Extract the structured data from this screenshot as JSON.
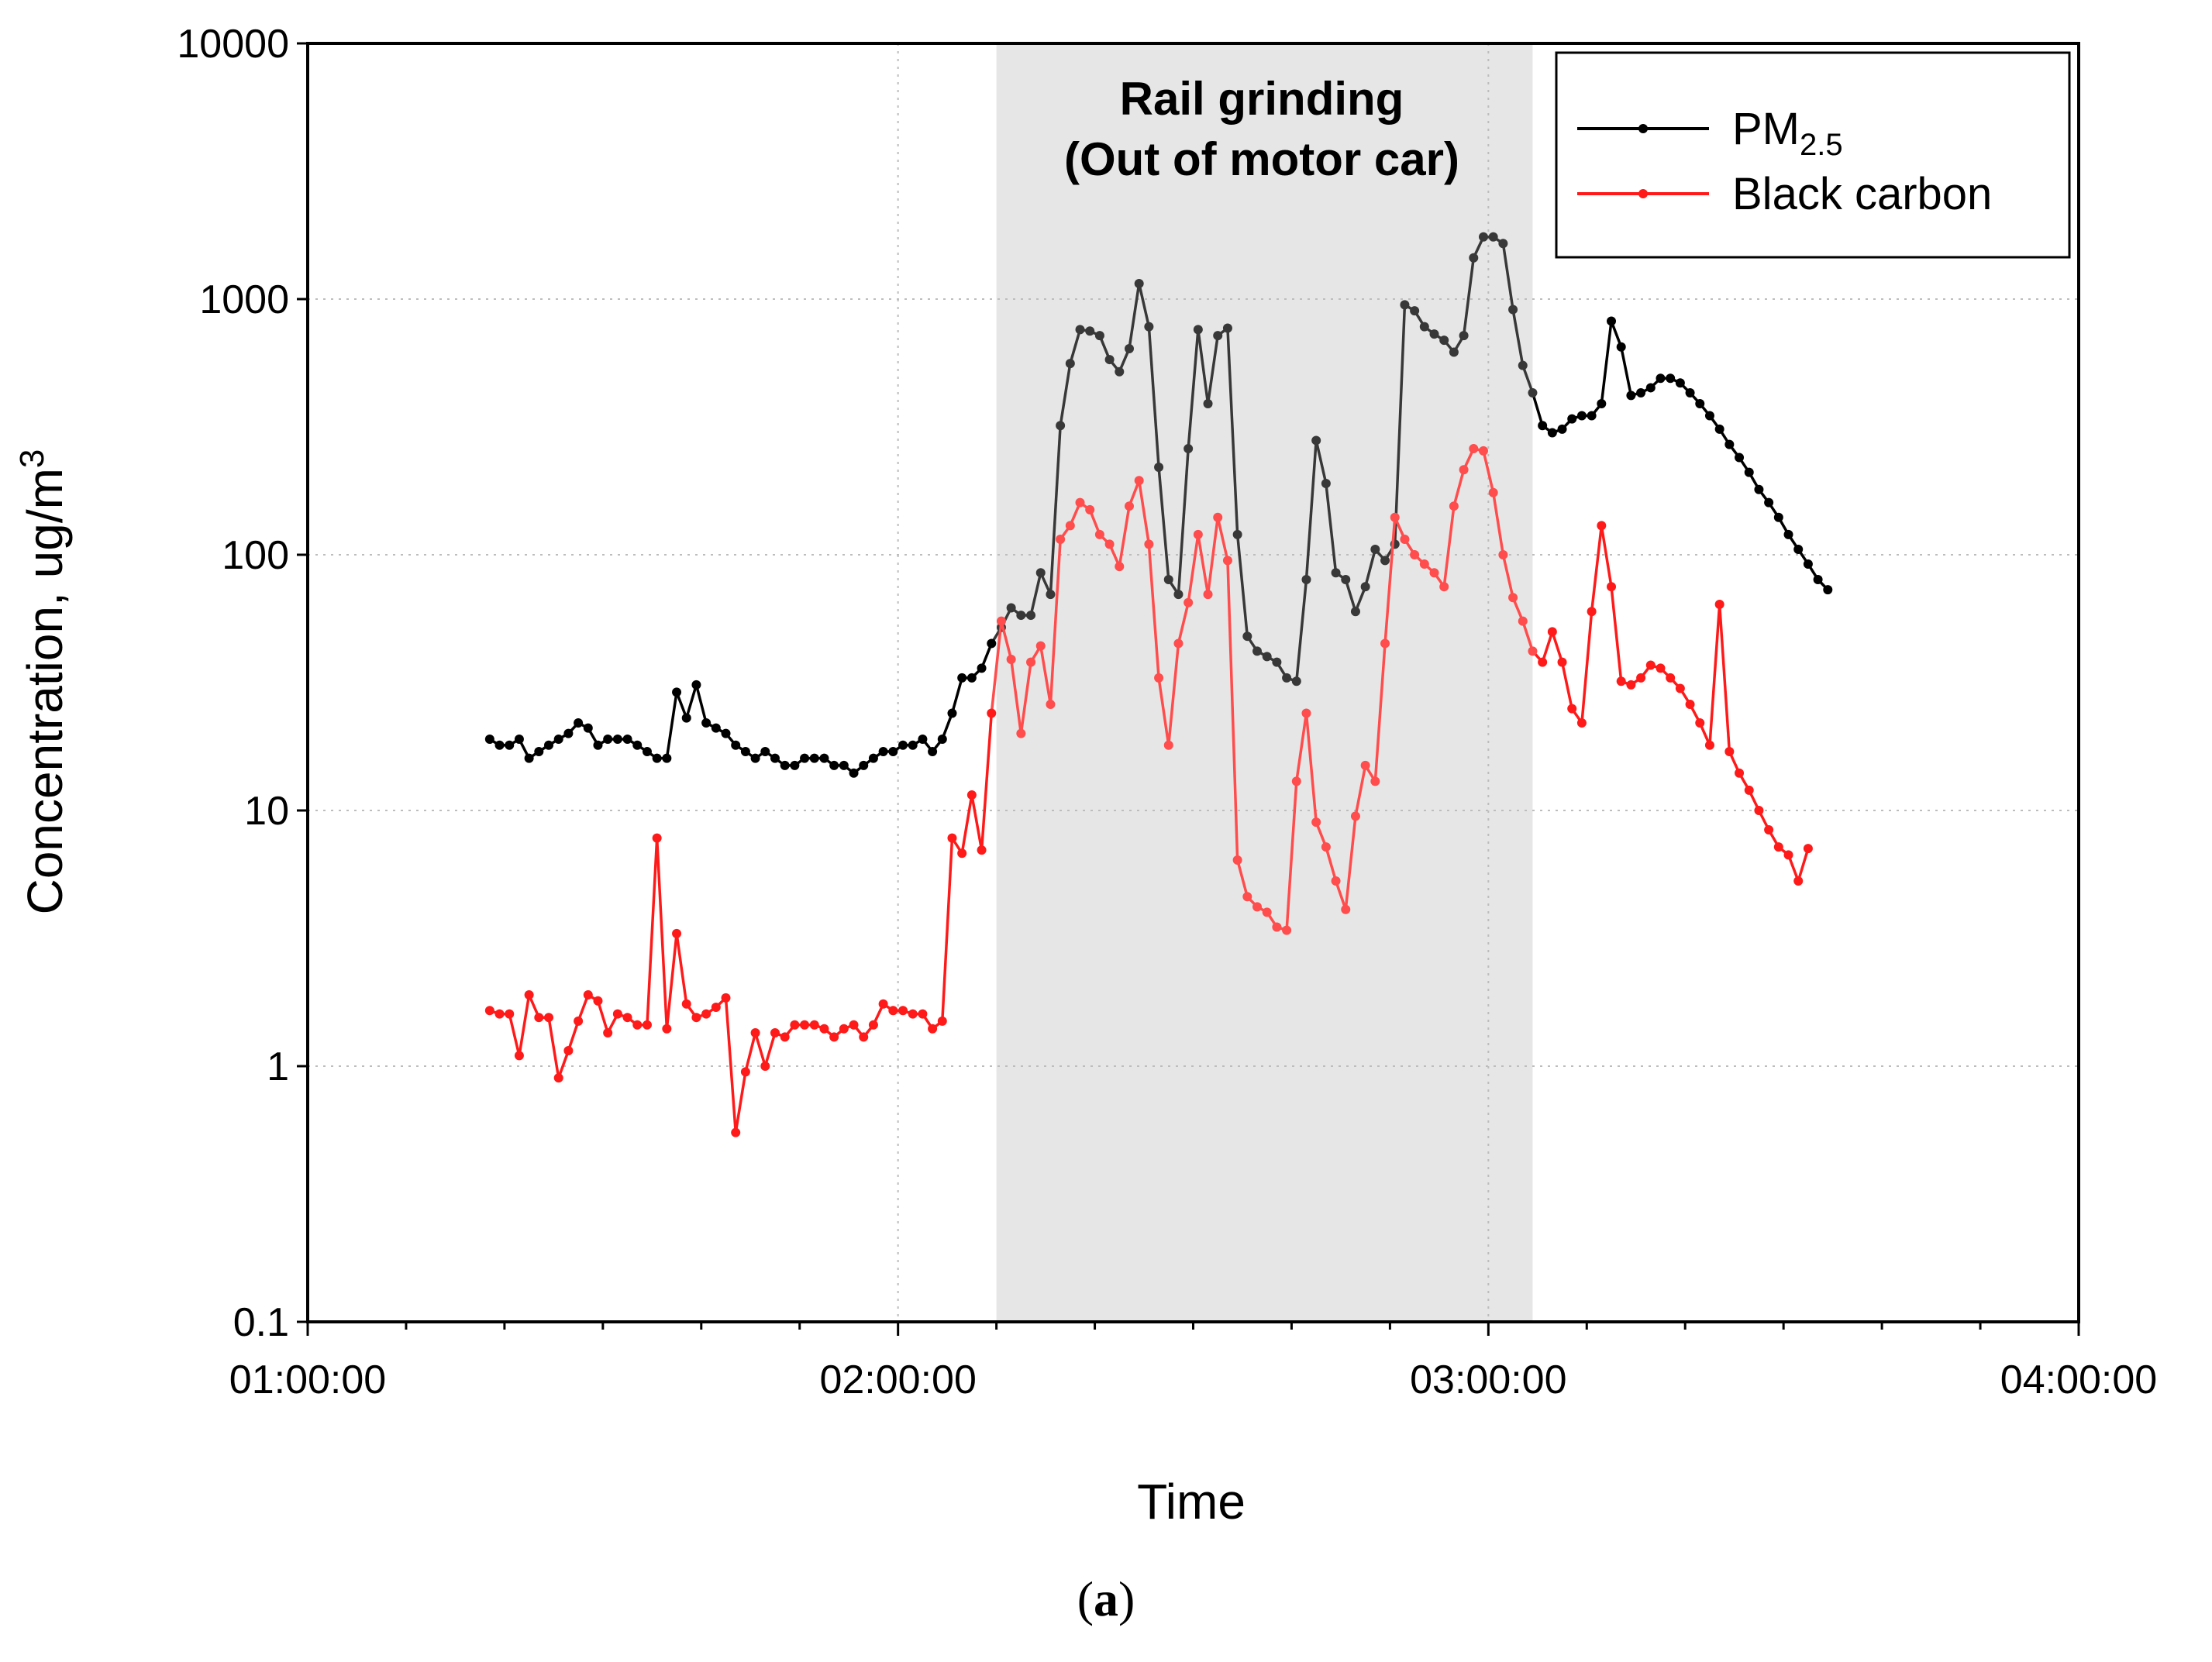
{
  "chart_data": {
    "type": "line",
    "xlabel": "Time",
    "ylabel": "Concentration, ug/m",
    "ylabel_sup": "3",
    "y_scale": "log",
    "ylim": [
      0.1,
      10000
    ],
    "xlim": [
      "01:00:00",
      "04:00:00"
    ],
    "x_ticks": [
      "01:00:00",
      "02:00:00",
      "03:00:00",
      "04:00:00"
    ],
    "y_ticks": [
      "0.1",
      "1",
      "10",
      "100",
      "1000",
      "10000"
    ],
    "y_tick_values": [
      0.1,
      1,
      10,
      100,
      1000,
      10000
    ],
    "grid": "dotted",
    "legend_position": "top-right",
    "caption_paren_open": "(",
    "caption_letter": "a",
    "caption_paren_close": ")",
    "annotation": {
      "line1": "Rail grinding",
      "line2": "(Out of motor car)",
      "start": "02:10:00",
      "end": "03:04:30",
      "color": "#e6e6e6"
    },
    "series": [
      {
        "name": "PM",
        "name_sub": "2.5",
        "color": "#000000",
        "points": [
          [
            "01:18:30",
            19
          ],
          [
            "01:19:30",
            18
          ],
          [
            "01:20:30",
            18
          ],
          [
            "01:21:30",
            19
          ],
          [
            "01:22:30",
            16
          ],
          [
            "01:23:30",
            17
          ],
          [
            "01:24:30",
            18
          ],
          [
            "01:25:30",
            19
          ],
          [
            "01:26:30",
            20
          ],
          [
            "01:27:30",
            22
          ],
          [
            "01:28:30",
            21
          ],
          [
            "01:29:30",
            18
          ],
          [
            "01:30:30",
            19
          ],
          [
            "01:31:30",
            19
          ],
          [
            "01:32:30",
            19
          ],
          [
            "01:33:30",
            18
          ],
          [
            "01:34:30",
            17
          ],
          [
            "01:35:30",
            16
          ],
          [
            "01:36:30",
            16
          ],
          [
            "01:37:30",
            29
          ],
          [
            "01:38:30",
            23
          ],
          [
            "01:39:30",
            31
          ],
          [
            "01:40:30",
            22
          ],
          [
            "01:41:30",
            21
          ],
          [
            "01:42:30",
            20
          ],
          [
            "01:43:30",
            18
          ],
          [
            "01:44:30",
            17
          ],
          [
            "01:45:30",
            16
          ],
          [
            "01:46:30",
            17
          ],
          [
            "01:47:30",
            16
          ],
          [
            "01:48:30",
            15
          ],
          [
            "01:49:30",
            15
          ],
          [
            "01:50:30",
            16
          ],
          [
            "01:51:30",
            16
          ],
          [
            "01:52:30",
            16
          ],
          [
            "01:53:30",
            15
          ],
          [
            "01:54:30",
            15
          ],
          [
            "01:55:30",
            14
          ],
          [
            "01:56:30",
            15
          ],
          [
            "01:57:30",
            16
          ],
          [
            "01:58:30",
            17
          ],
          [
            "01:59:30",
            17
          ],
          [
            "02:00:30",
            18
          ],
          [
            "02:01:30",
            18
          ],
          [
            "02:02:30",
            19
          ],
          [
            "02:03:30",
            17
          ],
          [
            "02:04:30",
            19
          ],
          [
            "02:05:30",
            24
          ],
          [
            "02:06:30",
            33
          ],
          [
            "02:07:30",
            33
          ],
          [
            "02:08:30",
            36
          ],
          [
            "02:09:30",
            45
          ],
          [
            "02:10:30",
            52
          ],
          [
            "02:11:30",
            62
          ],
          [
            "02:12:30",
            58
          ],
          [
            "02:13:30",
            58
          ],
          [
            "02:14:30",
            85
          ],
          [
            "02:15:30",
            70
          ],
          [
            "02:16:30",
            320
          ],
          [
            "02:17:30",
            560
          ],
          [
            "02:18:30",
            760
          ],
          [
            "02:19:30",
            750
          ],
          [
            "02:20:30",
            720
          ],
          [
            "02:21:30",
            580
          ],
          [
            "02:22:30",
            520
          ],
          [
            "02:23:30",
            640
          ],
          [
            "02:24:30",
            1150
          ],
          [
            "02:25:30",
            780
          ],
          [
            "02:26:30",
            220
          ],
          [
            "02:27:30",
            80
          ],
          [
            "02:28:30",
            70
          ],
          [
            "02:29:30",
            260
          ],
          [
            "02:30:30",
            760
          ],
          [
            "02:31:30",
            390
          ],
          [
            "02:32:30",
            720
          ],
          [
            "02:33:30",
            770
          ],
          [
            "02:34:30",
            120
          ],
          [
            "02:35:30",
            48
          ],
          [
            "02:36:30",
            42
          ],
          [
            "02:37:30",
            40
          ],
          [
            "02:38:30",
            38
          ],
          [
            "02:39:30",
            33
          ],
          [
            "02:40:30",
            32
          ],
          [
            "02:41:30",
            80
          ],
          [
            "02:42:30",
            280
          ],
          [
            "02:43:30",
            190
          ],
          [
            "02:44:30",
            85
          ],
          [
            "02:45:30",
            80
          ],
          [
            "02:46:30",
            60
          ],
          [
            "02:47:30",
            75
          ],
          [
            "02:48:30",
            105
          ],
          [
            "02:49:30",
            95
          ],
          [
            "02:50:30",
            110
          ],
          [
            "02:51:30",
            950
          ],
          [
            "02:52:30",
            900
          ],
          [
            "02:53:30",
            780
          ],
          [
            "02:54:30",
            730
          ],
          [
            "02:55:30",
            690
          ],
          [
            "02:56:30",
            620
          ],
          [
            "02:57:30",
            720
          ],
          [
            "02:58:30",
            1450
          ],
          [
            "02:59:30",
            1750
          ],
          [
            "03:00:30",
            1750
          ],
          [
            "03:01:30",
            1650
          ],
          [
            "03:02:30",
            910
          ],
          [
            "03:03:30",
            550
          ],
          [
            "03:04:30",
            430
          ],
          [
            "03:05:30",
            320
          ],
          [
            "03:06:30",
            300
          ],
          [
            "03:07:30",
            310
          ],
          [
            "03:08:30",
            340
          ],
          [
            "03:09:30",
            350
          ],
          [
            "03:10:30",
            350
          ],
          [
            "03:11:30",
            390
          ],
          [
            "03:12:30",
            820
          ],
          [
            "03:13:30",
            650
          ],
          [
            "03:14:30",
            420
          ],
          [
            "03:15:30",
            430
          ],
          [
            "03:16:30",
            450
          ],
          [
            "03:17:30",
            490
          ],
          [
            "03:18:30",
            490
          ],
          [
            "03:19:30",
            470
          ],
          [
            "03:20:30",
            430
          ],
          [
            "03:21:30",
            390
          ],
          [
            "03:22:30",
            350
          ],
          [
            "03:23:30",
            310
          ],
          [
            "03:24:30",
            270
          ],
          [
            "03:25:30",
            240
          ],
          [
            "03:26:30",
            210
          ],
          [
            "03:27:30",
            180
          ],
          [
            "03:28:30",
            160
          ],
          [
            "03:29:30",
            140
          ],
          [
            "03:30:30",
            120
          ],
          [
            "03:31:30",
            105
          ],
          [
            "03:32:30",
            92
          ],
          [
            "03:33:30",
            80
          ],
          [
            "03:34:30",
            73
          ]
        ]
      },
      {
        "name": "Black carbon",
        "name_sub": "",
        "color": "#ff1a1a",
        "points": [
          [
            "01:18:30",
            1.65
          ],
          [
            "01:19:30",
            1.6
          ],
          [
            "01:20:30",
            1.6
          ],
          [
            "01:21:30",
            1.1
          ],
          [
            "01:22:30",
            1.9
          ],
          [
            "01:23:30",
            1.55
          ],
          [
            "01:24:30",
            1.55
          ],
          [
            "01:25:30",
            0.9
          ],
          [
            "01:26:30",
            1.15
          ],
          [
            "01:27:30",
            1.5
          ],
          [
            "01:28:30",
            1.9
          ],
          [
            "01:29:30",
            1.8
          ],
          [
            "01:30:30",
            1.35
          ],
          [
            "01:31:30",
            1.6
          ],
          [
            "01:32:30",
            1.55
          ],
          [
            "01:33:30",
            1.45
          ],
          [
            "01:34:30",
            1.45
          ],
          [
            "01:35:30",
            7.8
          ],
          [
            "01:36:30",
            1.4
          ],
          [
            "01:37:30",
            3.3
          ],
          [
            "01:38:30",
            1.75
          ],
          [
            "01:39:30",
            1.55
          ],
          [
            "01:40:30",
            1.6
          ],
          [
            "01:41:30",
            1.7
          ],
          [
            "01:42:30",
            1.85
          ],
          [
            "01:43:30",
            0.55
          ],
          [
            "01:44:30",
            0.95
          ],
          [
            "01:45:30",
            1.35
          ],
          [
            "01:46:30",
            1.0
          ],
          [
            "01:47:30",
            1.35
          ],
          [
            "01:48:30",
            1.3
          ],
          [
            "01:49:30",
            1.45
          ],
          [
            "01:50:30",
            1.45
          ],
          [
            "01:51:30",
            1.45
          ],
          [
            "01:52:30",
            1.4
          ],
          [
            "01:53:30",
            1.3
          ],
          [
            "01:54:30",
            1.4
          ],
          [
            "01:55:30",
            1.45
          ],
          [
            "01:56:30",
            1.3
          ],
          [
            "01:57:30",
            1.45
          ],
          [
            "01:58:30",
            1.75
          ],
          [
            "01:59:30",
            1.65
          ],
          [
            "02:00:30",
            1.65
          ],
          [
            "02:01:30",
            1.6
          ],
          [
            "02:02:30",
            1.6
          ],
          [
            "02:03:30",
            1.4
          ],
          [
            "02:04:30",
            1.5
          ],
          [
            "02:05:30",
            7.8
          ],
          [
            "02:06:30",
            6.8
          ],
          [
            "02:07:30",
            11.5
          ],
          [
            "02:08:30",
            7.0
          ],
          [
            "02:09:30",
            24
          ],
          [
            "02:10:30",
            55
          ],
          [
            "02:11:30",
            39
          ],
          [
            "02:12:30",
            20
          ],
          [
            "02:13:30",
            38
          ],
          [
            "02:14:30",
            44
          ],
          [
            "02:15:30",
            26
          ],
          [
            "02:16:30",
            115
          ],
          [
            "02:17:30",
            130
          ],
          [
            "02:18:30",
            160
          ],
          [
            "02:19:30",
            150
          ],
          [
            "02:20:30",
            120
          ],
          [
            "02:21:30",
            110
          ],
          [
            "02:22:30",
            90
          ],
          [
            "02:23:30",
            155
          ],
          [
            "02:24:30",
            195
          ],
          [
            "02:25:30",
            110
          ],
          [
            "02:26:30",
            33
          ],
          [
            "02:27:30",
            18
          ],
          [
            "02:28:30",
            45
          ],
          [
            "02:29:30",
            65
          ],
          [
            "02:30:30",
            120
          ],
          [
            "02:31:30",
            70
          ],
          [
            "02:32:30",
            140
          ],
          [
            "02:33:30",
            95
          ],
          [
            "02:34:30",
            6.4
          ],
          [
            "02:35:30",
            4.6
          ],
          [
            "02:36:30",
            4.2
          ],
          [
            "02:37:30",
            4.0
          ],
          [
            "02:38:30",
            3.5
          ],
          [
            "02:39:30",
            3.4
          ],
          [
            "02:40:30",
            13
          ],
          [
            "02:41:30",
            24
          ],
          [
            "02:42:30",
            9
          ],
          [
            "02:43:30",
            7.2
          ],
          [
            "02:44:30",
            5.3
          ],
          [
            "02:45:30",
            4.1
          ],
          [
            "02:46:30",
            9.5
          ],
          [
            "02:47:30",
            15
          ],
          [
            "02:48:30",
            13
          ],
          [
            "02:49:30",
            45
          ],
          [
            "02:50:30",
            140
          ],
          [
            "02:51:30",
            115
          ],
          [
            "02:52:30",
            100
          ],
          [
            "02:53:30",
            92
          ],
          [
            "02:54:30",
            85
          ],
          [
            "02:55:30",
            75
          ],
          [
            "02:56:30",
            155
          ],
          [
            "02:57:30",
            215
          ],
          [
            "02:58:30",
            260
          ],
          [
            "02:59:30",
            255
          ],
          [
            "03:00:30",
            175
          ],
          [
            "03:01:30",
            100
          ],
          [
            "03:02:30",
            68
          ],
          [
            "03:03:30",
            55
          ],
          [
            "03:04:30",
            42
          ],
          [
            "03:05:30",
            38
          ],
          [
            "03:06:30",
            50
          ],
          [
            "03:07:30",
            38
          ],
          [
            "03:08:30",
            25
          ],
          [
            "03:09:30",
            22
          ],
          [
            "03:10:30",
            60
          ],
          [
            "03:11:30",
            130
          ],
          [
            "03:12:30",
            75
          ],
          [
            "03:13:30",
            32
          ],
          [
            "03:14:30",
            31
          ],
          [
            "03:15:30",
            33
          ],
          [
            "03:16:30",
            37
          ],
          [
            "03:17:30",
            36
          ],
          [
            "03:18:30",
            33
          ],
          [
            "03:19:30",
            30
          ],
          [
            "03:20:30",
            26
          ],
          [
            "03:21:30",
            22
          ],
          [
            "03:22:30",
            18
          ],
          [
            "03:23:30",
            64
          ],
          [
            "03:24:30",
            17
          ],
          [
            "03:25:30",
            14
          ],
          [
            "03:26:30",
            12
          ],
          [
            "03:27:30",
            10
          ],
          [
            "03:28:30",
            8.4
          ],
          [
            "03:29:30",
            7.2
          ],
          [
            "03:30:30",
            6.7
          ],
          [
            "03:31:30",
            5.3
          ],
          [
            "03:32:30",
            7.1
          ]
        ]
      }
    ]
  }
}
